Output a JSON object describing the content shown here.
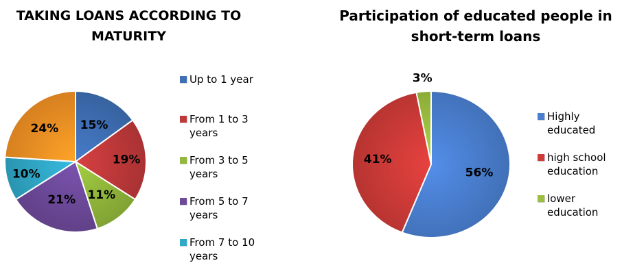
{
  "chart_data": [
    {
      "type": "pie",
      "title": "TAKING LOANS ACCORDING TO MATURITY",
      "slices": [
        {
          "label": "Up to 1 year",
          "value": 15,
          "display": "15%",
          "color": "#3f6fb5"
        },
        {
          "label": "From 1 to 3 years",
          "value": 19,
          "display": "19%",
          "color": "#c0393a"
        },
        {
          "label": "From 3 to 5 years",
          "value": 11,
          "display": "11%",
          "color": "#92b83b"
        },
        {
          "label": "From 5 to 7 years",
          "value": 21,
          "display": "21%",
          "color": "#6e4a9b"
        },
        {
          "label": "From 7 to 10 years",
          "value": 10,
          "display": "10%",
          "color": "#30a8c8"
        },
        {
          "label": "",
          "value": 24,
          "display": "24%",
          "color": "#f39224"
        }
      ],
      "legend_position": "right"
    },
    {
      "type": "pie",
      "title": "Participation of educated people in short-term loans",
      "slices": [
        {
          "label": "Highly educated",
          "value": 56,
          "display": "56%",
          "color": "#4a7fd0"
        },
        {
          "label": "high school education",
          "value": 41,
          "display": "41%",
          "color": "#cf3b38"
        },
        {
          "label": "lower education",
          "value": 3,
          "display": "3%",
          "color": "#9bbf3f"
        }
      ],
      "legend_position": "right"
    }
  ]
}
